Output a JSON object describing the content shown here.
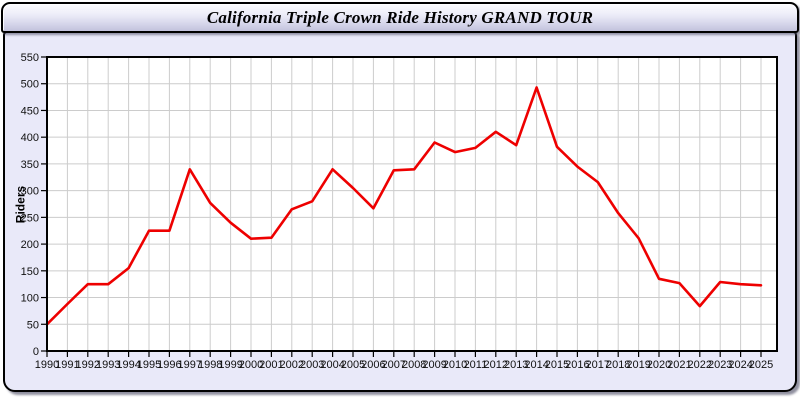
{
  "window": {
    "title": "California Triple Crown Ride History GRAND TOUR"
  },
  "chart_data": {
    "type": "line",
    "title": "California Triple Crown Ride History GRAND TOUR",
    "xlabel": "",
    "ylabel": "Riders",
    "x": [
      1990,
      1991,
      1992,
      1993,
      1994,
      1995,
      1996,
      1997,
      1998,
      1999,
      2000,
      2001,
      2002,
      2003,
      2004,
      2005,
      2006,
      2007,
      2008,
      2009,
      2010,
      2011,
      2012,
      2013,
      2014,
      2015,
      2016,
      2017,
      2018,
      2019,
      2020,
      2021,
      2022,
      2023,
      2024,
      2025
    ],
    "series": [
      {
        "name": "Riders",
        "values": [
          50,
          88,
          125,
          125,
          155,
          225,
          225,
          340,
          277,
          240,
          210,
          212,
          265,
          280,
          340,
          305,
          267,
          338,
          340,
          390,
          372,
          380,
          410,
          385,
          493,
          382,
          345,
          316,
          258,
          211,
          135,
          127,
          84,
          129,
          125,
          123
        ]
      }
    ],
    "ylim": [
      0,
      550
    ],
    "y_tick_step": 50,
    "grid": true,
    "legend": "none",
    "line_color": "#ee0000",
    "grid_color": "#cccccc",
    "plot_bg": "#ffffff",
    "axis_color": "#000000",
    "tick_label_color": "#111111"
  },
  "colors": {
    "panel_bg": "#e9e9f9",
    "titlebar_top": "#fdfdff",
    "titlebar_bottom": "#c2c2dc",
    "border": "#000000"
  }
}
